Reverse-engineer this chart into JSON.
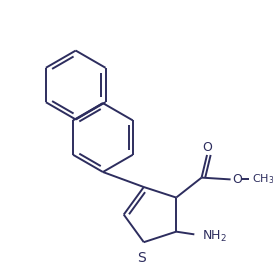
{
  "bg_color": "#ffffff",
  "line_color": "#2d2d5e",
  "line_width": 1.4,
  "figsize": [
    2.73,
    2.8
  ],
  "dpi": 100,
  "xlim": [
    0,
    273
  ],
  "ylim": [
    0,
    280
  ]
}
